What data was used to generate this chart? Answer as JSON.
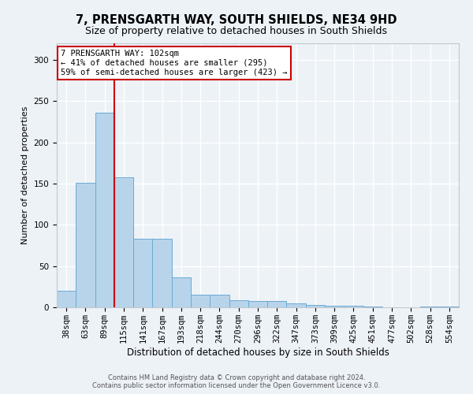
{
  "title": "7, PRENSGARTH WAY, SOUTH SHIELDS, NE34 9HD",
  "subtitle": "Size of property relative to detached houses in South Shields",
  "xlabel": "Distribution of detached houses by size in South Shields",
  "ylabel": "Number of detached properties",
  "footer_line1": "Contains HM Land Registry data © Crown copyright and database right 2024.",
  "footer_line2": "Contains public sector information licensed under the Open Government Licence v3.0.",
  "categories": [
    "38sqm",
    "63sqm",
    "89sqm",
    "115sqm",
    "141sqm",
    "167sqm",
    "193sqm",
    "218sqm",
    "244sqm",
    "270sqm",
    "296sqm",
    "322sqm",
    "347sqm",
    "373sqm",
    "399sqm",
    "425sqm",
    "451sqm",
    "477sqm",
    "502sqm",
    "528sqm",
    "554sqm"
  ],
  "values": [
    20,
    151,
    236,
    158,
    83,
    83,
    36,
    15,
    15,
    9,
    8,
    8,
    5,
    3,
    2,
    2,
    1,
    0,
    0,
    1,
    1
  ],
  "bar_color": "#b8d4ea",
  "bar_edge_color": "#6aaad4",
  "vline_x": 2.5,
  "vline_color": "#cc0000",
  "annotation_text": "7 PRENSGARTH WAY: 102sqm\n← 41% of detached houses are smaller (295)\n59% of semi-detached houses are larger (423) →",
  "ylim": [
    0,
    320
  ],
  "yticks": [
    0,
    50,
    100,
    150,
    200,
    250,
    300
  ],
  "bg_color": "#edf2f7",
  "grid_color": "#ffffff",
  "title_fontsize": 10.5,
  "subtitle_fontsize": 9,
  "tick_fontsize": 7.5,
  "xlabel_fontsize": 8.5,
  "ylabel_fontsize": 8
}
